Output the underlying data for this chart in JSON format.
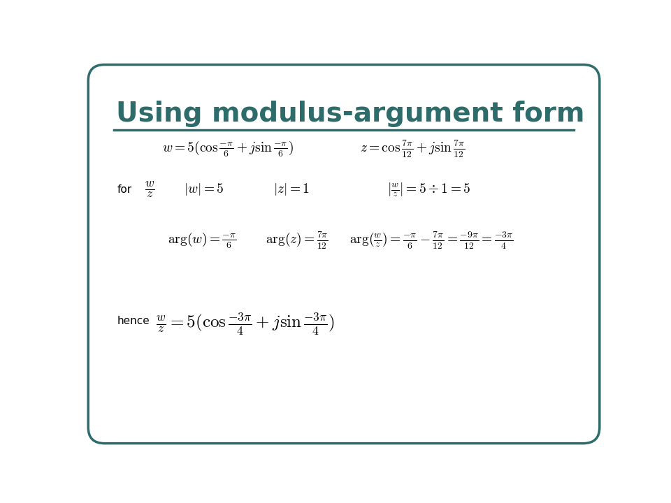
{
  "title": "Using modulus-argument form",
  "title_color": "#2e6b6b",
  "title_fontsize": 28,
  "background_color": "#ffffff",
  "border_color": "#2e6b6b",
  "text_color": "#000000",
  "line_color": "#2e6b6b",
  "fs": 14,
  "fs_small": 11
}
